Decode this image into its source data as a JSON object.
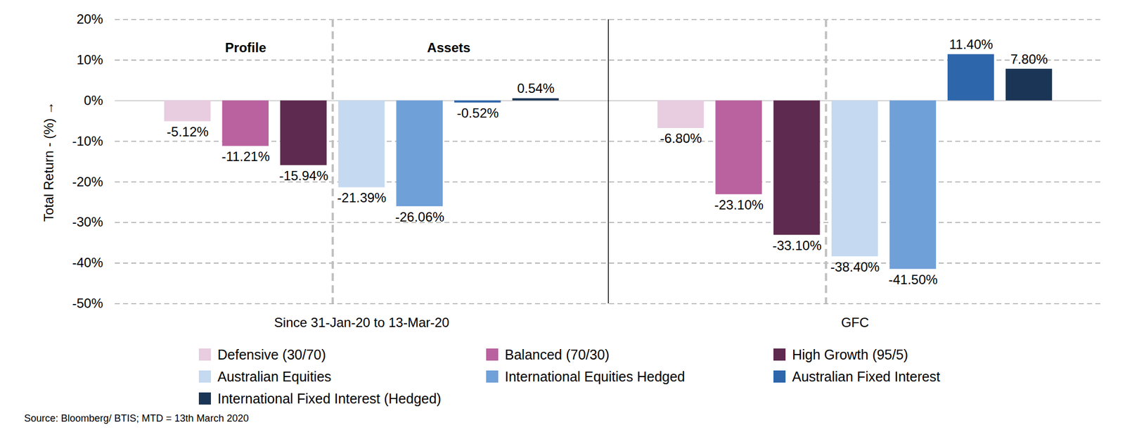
{
  "chart_data": {
    "type": "bar",
    "y_label": "Total Return - (%)",
    "categories": [
      "Since 31-Jan-20 to 13-Mar-20",
      "GFC"
    ],
    "series": [
      {
        "name": "Defensive (30/70)",
        "color": "#e8cce0",
        "values": [
          -5.12,
          -6.8
        ],
        "value_labels": [
          "-5.12%",
          "-6.80%"
        ]
      },
      {
        "name": "Balanced (70/30)",
        "color": "#b9629f",
        "values": [
          -11.21,
          -23.1
        ],
        "value_labels": [
          "-11.21%",
          "-23.10%"
        ]
      },
      {
        "name": "High Growth (95/5)",
        "color": "#5e2a4f",
        "values": [
          -15.94,
          -33.1
        ],
        "value_labels": [
          "-15.94%",
          "-33.10%"
        ]
      },
      {
        "name": "Australian Equities",
        "color": "#c5d9f0",
        "values": [
          -21.39,
          -38.4
        ],
        "value_labels": [
          "-21.39%",
          "-38.40%"
        ]
      },
      {
        "name": "International Equities Hedged",
        "color": "#70a0d8",
        "values": [
          -26.06,
          -41.5
        ],
        "value_labels": [
          "-26.06%",
          "-41.50%"
        ]
      },
      {
        "name": "Australian Fixed Interest",
        "color": "#2e66ab",
        "values": [
          -0.52,
          11.4
        ],
        "value_labels": [
          "-0.52%",
          "11.40%"
        ]
      },
      {
        "name": "International Fixed Interest (Hedged)",
        "color": "#1b3556",
        "values": [
          0.54,
          7.8
        ],
        "value_labels": [
          "0.54%",
          "7.80%"
        ]
      }
    ],
    "annotations": [
      {
        "text": "Profile",
        "category": "Since 31-Jan-20 to 13-Mar-20",
        "series": [
          "Defensive (30/70)",
          "Balanced (70/30)",
          "High Growth (95/5)"
        ]
      },
      {
        "text": "Assets",
        "category": "Since 31-Jan-20 to 13-Mar-20",
        "series": [
          "Australian Equities",
          "International Equities Hedged",
          "Australian Fixed Interest",
          "International Fixed Interest (Hedged)"
        ]
      }
    ],
    "ylim": [
      -50,
      20
    ],
    "yticks": [
      {
        "value": -50,
        "label": "-50%"
      },
      {
        "value": -40,
        "label": "-40%"
      },
      {
        "value": -30,
        "label": "-30%"
      },
      {
        "value": -20,
        "label": "-20%"
      },
      {
        "value": -10,
        "label": "-10%"
      },
      {
        "value": 0,
        "label": "0%"
      },
      {
        "value": 10,
        "label": "10%"
      },
      {
        "value": 20,
        "label": "20%"
      }
    ],
    "grid": true,
    "data_labels": true,
    "legend": "bottom",
    "caption": "Source: Bloomberg/ BTIS; MTD = 13th March 2020"
  }
}
